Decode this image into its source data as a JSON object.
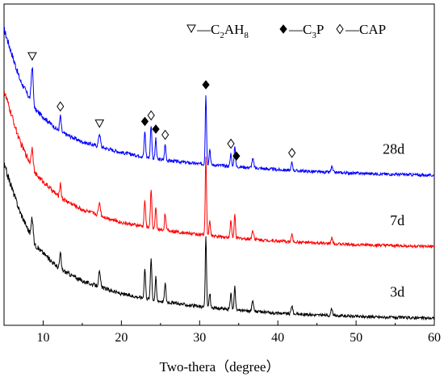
{
  "chart_data": {
    "type": "line",
    "xlabel": "Two-thera（degree）",
    "ylabel": "",
    "xlim": [
      5,
      60
    ],
    "xticks": [
      10,
      20,
      30,
      40,
      50,
      60
    ],
    "y_ticks_shown": false,
    "grid": false,
    "legend": {
      "placement": "top-right",
      "entries": [
        {
          "symbol": "open-down-triangle",
          "prefix": "—C",
          "sub1": "2",
          "mid": "AH",
          "sub2": "8",
          "text": "—C2AH8"
        },
        {
          "symbol": "filled-diamond",
          "prefix": "—C",
          "sub1": "3",
          "mid": "P",
          "sub2": "",
          "text": "—C3P"
        },
        {
          "symbol": "open-diamond",
          "prefix": "—CAP",
          "sub1": "",
          "mid": "",
          "sub2": "",
          "text": "—CAP"
        }
      ]
    },
    "series": [
      {
        "name": "28d",
        "color": "#0000ff",
        "offset": 200,
        "baseline": [
          [
            5,
            205
          ],
          [
            7,
            135
          ],
          [
            9,
            92
          ],
          [
            12,
            62
          ],
          [
            15,
            47
          ],
          [
            20,
            32
          ],
          [
            25,
            22
          ],
          [
            30,
            16
          ],
          [
            35,
            12
          ],
          [
            40,
            8
          ],
          [
            45,
            5
          ],
          [
            50,
            3
          ],
          [
            55,
            1.5
          ],
          [
            60,
            0
          ]
        ],
        "peaks": [
          [
            8.6,
            52,
            0.12
          ],
          [
            12.2,
            22,
            0.1
          ],
          [
            17.2,
            18,
            0.12
          ],
          [
            23.0,
            36,
            0.09
          ],
          [
            23.8,
            46,
            0.09
          ],
          [
            24.4,
            28,
            0.08
          ],
          [
            25.6,
            22,
            0.09
          ],
          [
            30.8,
            98,
            0.08
          ],
          [
            31.3,
            22,
            0.09
          ],
          [
            34.0,
            18,
            0.09
          ],
          [
            34.5,
            30,
            0.08
          ],
          [
            36.8,
            12,
            0.12
          ],
          [
            41.8,
            11,
            0.1
          ],
          [
            46.9,
            8,
            0.1
          ]
        ]
      },
      {
        "name": "7d",
        "color": "#ff0000",
        "offset": 100,
        "baseline": [
          [
            5,
            218
          ],
          [
            7,
            148
          ],
          [
            9,
            102
          ],
          [
            12,
            70
          ],
          [
            15,
            52
          ],
          [
            20,
            34
          ],
          [
            25,
            24
          ],
          [
            30,
            17
          ],
          [
            35,
            12
          ],
          [
            40,
            8
          ],
          [
            45,
            5
          ],
          [
            50,
            3
          ],
          [
            55,
            1.5
          ],
          [
            60,
            0
          ]
        ],
        "peaks": [
          [
            8.6,
            28,
            0.12
          ],
          [
            12.2,
            20,
            0.1
          ],
          [
            17.2,
            18,
            0.12
          ],
          [
            23.0,
            38,
            0.09
          ],
          [
            23.8,
            52,
            0.09
          ],
          [
            24.4,
            30,
            0.08
          ],
          [
            25.6,
            24,
            0.09
          ],
          [
            30.8,
            110,
            0.08
          ],
          [
            31.3,
            20,
            0.09
          ],
          [
            34.0,
            24,
            0.09
          ],
          [
            34.5,
            32,
            0.08
          ],
          [
            36.8,
            12,
            0.12
          ],
          [
            41.8,
            10,
            0.1
          ],
          [
            46.9,
            8,
            0.1
          ]
        ]
      },
      {
        "name": "3d",
        "color": "#000000",
        "offset": 0,
        "baseline": [
          [
            5,
            215
          ],
          [
            7,
            150
          ],
          [
            9,
            102
          ],
          [
            12,
            70
          ],
          [
            15,
            52
          ],
          [
            20,
            34
          ],
          [
            25,
            24
          ],
          [
            30,
            16
          ],
          [
            35,
            11
          ],
          [
            40,
            7
          ],
          [
            45,
            4.5
          ],
          [
            50,
            2.5
          ],
          [
            55,
            1
          ],
          [
            60,
            0
          ]
        ],
        "peaks": [
          [
            8.6,
            28,
            0.12
          ],
          [
            12.2,
            22,
            0.1
          ],
          [
            17.2,
            20,
            0.12
          ],
          [
            23.0,
            42,
            0.09
          ],
          [
            23.8,
            58,
            0.09
          ],
          [
            24.4,
            32,
            0.08
          ],
          [
            25.6,
            26,
            0.09
          ],
          [
            30.8,
            98,
            0.08
          ],
          [
            31.3,
            20,
            0.09
          ],
          [
            34.0,
            24,
            0.09
          ],
          [
            34.5,
            34,
            0.08
          ],
          [
            36.8,
            14,
            0.12
          ],
          [
            41.8,
            12,
            0.1
          ],
          [
            46.9,
            10,
            0.1
          ]
        ]
      }
    ],
    "annotations": [
      {
        "phase": "C2AH8",
        "symbol": "open-down-triangle",
        "x": 8.6,
        "series": "28d"
      },
      {
        "phase": "CAP",
        "symbol": "open-diamond",
        "x": 12.2,
        "series": "28d"
      },
      {
        "phase": "C2AH8",
        "symbol": "open-down-triangle",
        "x": 17.2,
        "series": "28d"
      },
      {
        "phase": "C3P",
        "symbol": "filled-diamond",
        "x": 23.0,
        "series": "28d"
      },
      {
        "phase": "CAP",
        "symbol": "open-diamond",
        "x": 23.8,
        "series": "28d"
      },
      {
        "phase": "C3P",
        "symbol": "filled-diamond",
        "x": 24.4,
        "series": "28d"
      },
      {
        "phase": "CAP",
        "symbol": "open-diamond",
        "x": 25.6,
        "series": "28d"
      },
      {
        "phase": "C3P",
        "symbol": "filled-diamond",
        "x": 30.8,
        "series": "28d"
      },
      {
        "phase": "CAP",
        "symbol": "open-diamond",
        "x": 34.0,
        "series": "28d"
      },
      {
        "phase": "C3P",
        "symbol": "filled-diamond",
        "x": 34.7,
        "series": "28d"
      },
      {
        "phase": "CAP",
        "symbol": "open-diamond",
        "x": 41.8,
        "series": "28d"
      }
    ]
  }
}
